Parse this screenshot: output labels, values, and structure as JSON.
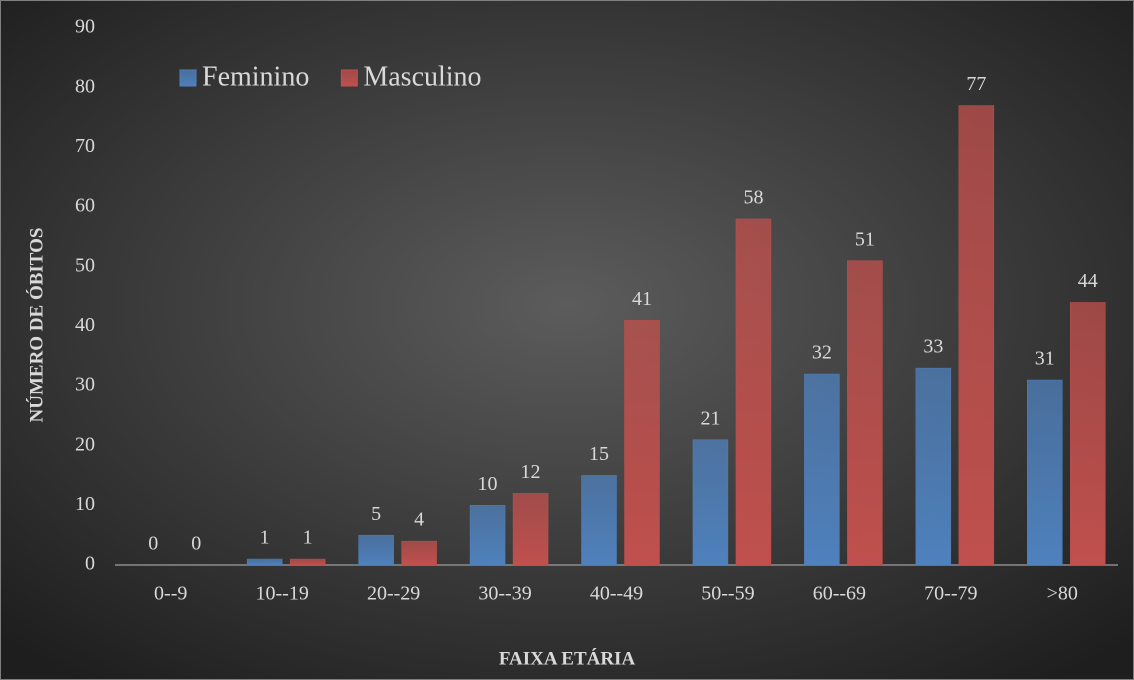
{
  "chart_data": {
    "type": "bar",
    "categories": [
      "0--9",
      "10--19",
      "20--29",
      "30--39",
      "40--49",
      "50--59",
      "60--69",
      "70--79",
      ">80"
    ],
    "series": [
      {
        "name": "Feminino",
        "color": "#4f81bd",
        "values": [
          0,
          1,
          5,
          10,
          15,
          21,
          32,
          33,
          31
        ]
      },
      {
        "name": "Masculino",
        "color": "#c0504d",
        "values": [
          0,
          1,
          4,
          12,
          41,
          58,
          51,
          77,
          44
        ]
      }
    ],
    "ylim": [
      0,
      90
    ],
    "yticks": [
      0,
      10,
      20,
      30,
      40,
      50,
      60,
      70,
      80,
      90
    ],
    "y_label": "NÚMERO DE ÓBITOS",
    "x_label": "FAIXA ETÁRIA",
    "legend": "top-left",
    "grid": false
  }
}
